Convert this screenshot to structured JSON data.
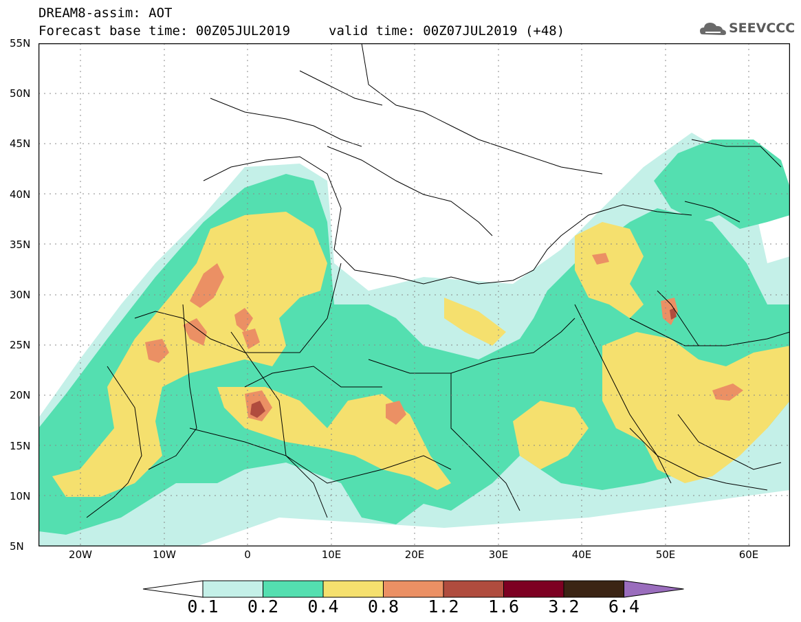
{
  "header": {
    "title": "DREAM8-assim: AOT",
    "base_time": "Forecast base time: 00Z05JUL2019",
    "valid_time": "valid time: 00Z07JUL2019 (+48)",
    "logo_text": "SEEVCCC"
  },
  "axes": {
    "lat_labels": [
      "55N",
      "50N",
      "45N",
      "40N",
      "35N",
      "30N",
      "25N",
      "20N",
      "15N",
      "10N",
      "5N"
    ],
    "lon_labels": [
      "20W",
      "10W",
      "0",
      "10E",
      "20E",
      "30E",
      "40E",
      "50E",
      "60E"
    ]
  },
  "colorbar": {
    "labels": [
      "0.1",
      "0.2",
      "0.4",
      "0.8",
      "1.2",
      "1.6",
      "3.2",
      "6.4"
    ],
    "colors": [
      "#ffffff",
      "#c4f0e8",
      "#54dfb0",
      "#f5e06e",
      "#eb9064",
      "#b04c3e",
      "#7d0022",
      "#3b2414",
      "#9a6dbd"
    ]
  },
  "fields": {
    "light_cyan": "#c4f0e8",
    "green": "#54dfb0",
    "yellow": "#f5e06e",
    "orange": "#eb9064",
    "red": "#b04c3e",
    "darkred": "#7d0022"
  }
}
